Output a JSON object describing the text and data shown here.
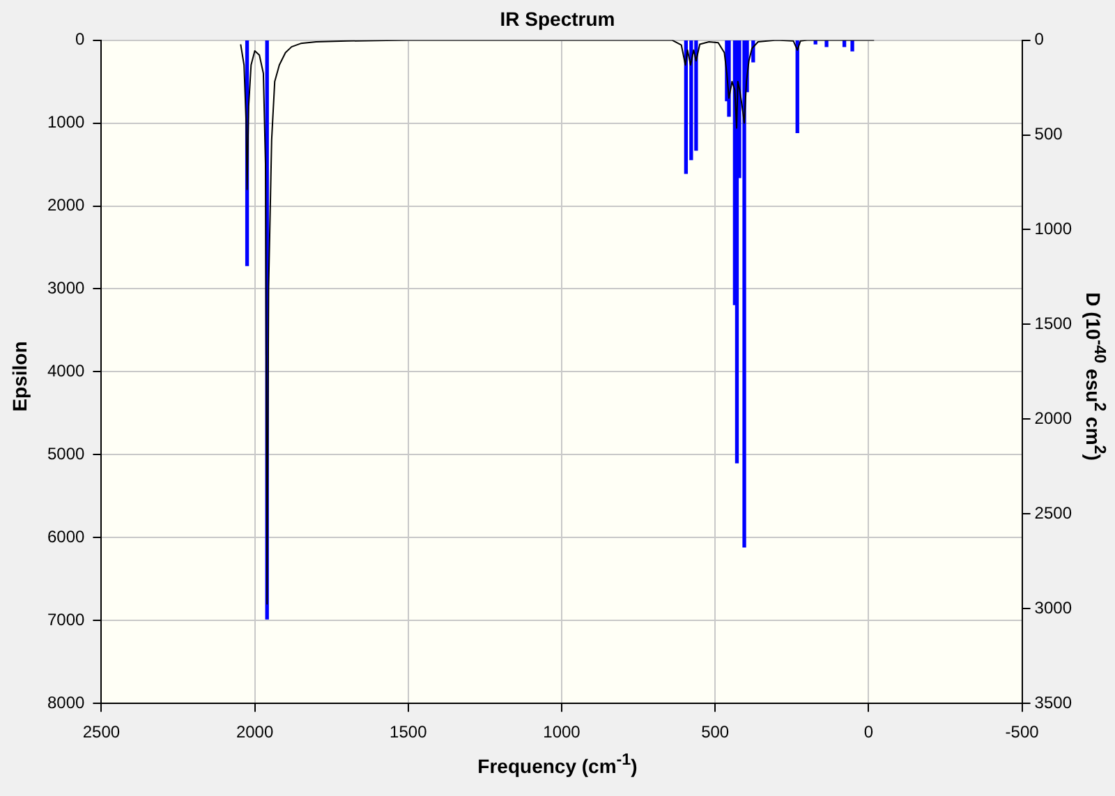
{
  "chart_data": {
    "type": "line",
    "title": "IR Spectrum",
    "xlabel": "Frequency (cm$^{-1}$)",
    "ylabel": "Epsilon",
    "y2label": "D (10$^{-40}$ esu$^{2}$ cm$^{2}$)",
    "xlim": [
      2500,
      -500
    ],
    "xticks": [
      2500,
      2000,
      1500,
      1000,
      500,
      0,
      -500
    ],
    "ylim": [
      8000,
      0
    ],
    "yticks": [
      0,
      1000,
      2000,
      3000,
      4000,
      5000,
      6000,
      7000,
      8000
    ],
    "y2lim": [
      3500,
      0
    ],
    "y2ticks": [
      0,
      500,
      1000,
      1500,
      2000,
      2500,
      3000,
      3500
    ],
    "grid": true,
    "legend": false,
    "marker": "none",
    "series": [
      {
        "color": "#000000",
        "line_style": "solid",
        "x": [
          2046,
          2035,
          2028,
          2025,
          2020,
          2012,
          2000,
          1985,
          1972,
          1965,
          1960,
          1955,
          1945,
          1935,
          1920,
          1900,
          1880,
          1850,
          1800,
          1700,
          1500,
          1000,
          640,
          610,
          597,
          590,
          580,
          570,
          562,
          550,
          520,
          490,
          470,
          462,
          455,
          445,
          436,
          430,
          426,
          420,
          412,
          405,
          398,
          390,
          380,
          360,
          300,
          245,
          232,
          222,
          200,
          100,
          0,
          -18
        ],
        "values": [
          50,
          300,
          1000,
          1800,
          800,
          300,
          130,
          180,
          400,
          1500,
          6800,
          3000,
          1200,
          500,
          300,
          150,
          80,
          40,
          20,
          10,
          0,
          0,
          0,
          60,
          300,
          120,
          300,
          120,
          250,
          50,
          20,
          30,
          150,
          400,
          700,
          500,
          600,
          1060,
          500,
          600,
          800,
          1000,
          500,
          250,
          100,
          20,
          0,
          10,
          120,
          10,
          0,
          0,
          0,
          0
        ]
      },
      {
        "type": "bar",
        "axis": "y2",
        "color": "#0000ff",
        "x": [
          2025,
          1960,
          595,
          578,
          562,
          462,
          455,
          436,
          429,
          421,
          405,
          396,
          376,
          232,
          173,
          137,
          79,
          53
        ],
        "values": [
          1190,
          3055,
          703,
          631,
          581,
          320,
          402,
          1396,
          2231,
          725,
          2675,
          272,
          115,
          488,
          20,
          34,
          34,
          57
        ]
      }
    ]
  }
}
